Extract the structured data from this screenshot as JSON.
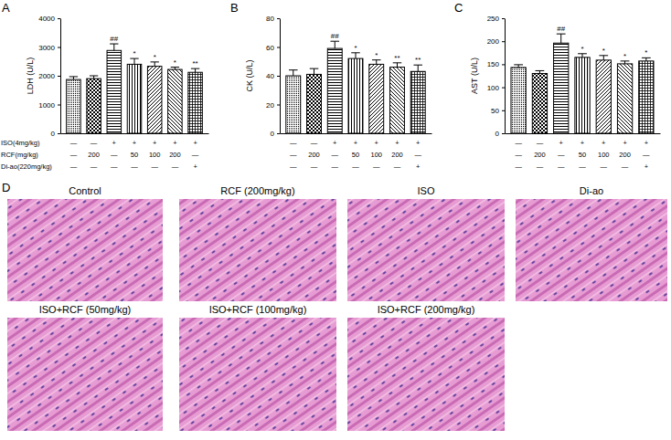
{
  "panel_labels": [
    "A",
    "B",
    "C",
    "D"
  ],
  "chart_data": [
    {
      "type": "bar",
      "y_label": "LDH (U/L)",
      "categories": [
        null,
        null,
        null,
        null,
        null,
        null,
        null
      ],
      "values": [
        1870,
        1900,
        2880,
        2400,
        2330,
        2220,
        2120
      ],
      "errors": [
        100,
        100,
        230,
        200,
        150,
        80,
        130
      ],
      "significance": [
        null,
        null,
        "##",
        "*",
        "*",
        "*",
        "**"
      ],
      "color": "#000000",
      "ylim": [
        0,
        4000
      ],
      "yticks": [
        0,
        1000,
        2000,
        3000,
        4000
      ],
      "treatments": [
        {
          "label": "ISO(4mg/kg)",
          "cells": [
            "—",
            "—",
            "+",
            "+",
            "+",
            "+",
            "+"
          ]
        },
        {
          "label": "RCF(mg/kg)",
          "cells": [
            "—",
            "200",
            "—",
            "50",
            "100",
            "200",
            "—"
          ]
        },
        {
          "label": "Di-ao(220mg/kg)",
          "cells": [
            "—",
            "—",
            "—",
            "—",
            "—",
            "—",
            "+"
          ]
        }
      ]
    },
    {
      "type": "bar",
      "y_label": "CK (U/L)",
      "categories": [
        null,
        null,
        null,
        null,
        null,
        null,
        null
      ],
      "values": [
        40,
        41,
        59,
        52,
        48,
        46,
        43
      ],
      "errors": [
        4,
        4,
        5,
        4,
        3,
        3,
        4.5
      ],
      "significance": [
        null,
        null,
        "##",
        "*",
        "*",
        "**",
        "**"
      ],
      "color": "#000000",
      "ylim": [
        0,
        80
      ],
      "yticks": [
        0,
        20,
        40,
        60,
        80
      ],
      "treatments": [
        {
          "cells": [
            "—",
            "—",
            "+",
            "+",
            "+",
            "+",
            "+"
          ]
        },
        {
          "cells": [
            "—",
            "200",
            "—",
            "50",
            "100",
            "200",
            "—"
          ]
        },
        {
          "cells": [
            "—",
            "—",
            "—",
            "—",
            "—",
            "—",
            "+"
          ]
        }
      ]
    },
    {
      "type": "bar",
      "y_label": "AST (U/L)",
      "categories": [
        null,
        null,
        null,
        null,
        null,
        null,
        null
      ],
      "values": [
        143,
        130,
        196,
        165,
        159,
        151,
        157
      ],
      "errors": [
        6,
        6,
        20,
        8,
        10,
        6,
        7
      ],
      "significance": [
        null,
        null,
        "##",
        "*",
        "*",
        "*",
        "*"
      ],
      "color": "#000000",
      "ylim": [
        0,
        250
      ],
      "yticks": [
        0,
        50,
        100,
        150,
        200,
        250
      ],
      "treatments": [
        {
          "cells": [
            "—",
            "—",
            "+",
            "+",
            "+",
            "+",
            "+"
          ]
        },
        {
          "cells": [
            "—",
            "200",
            "—",
            "50",
            "100",
            "200",
            "—"
          ]
        },
        {
          "cells": [
            "—",
            "—",
            "—",
            "—",
            "—",
            "—",
            "+"
          ]
        }
      ]
    }
  ],
  "histology": {
    "titles": [
      "Control",
      "RCF (200mg/kg)",
      "ISO",
      "Di-ao",
      "ISO+RCF (50mg/kg)",
      "ISO+RCF (100mg/kg)",
      "ISO+RCF (200mg/kg)"
    ]
  }
}
